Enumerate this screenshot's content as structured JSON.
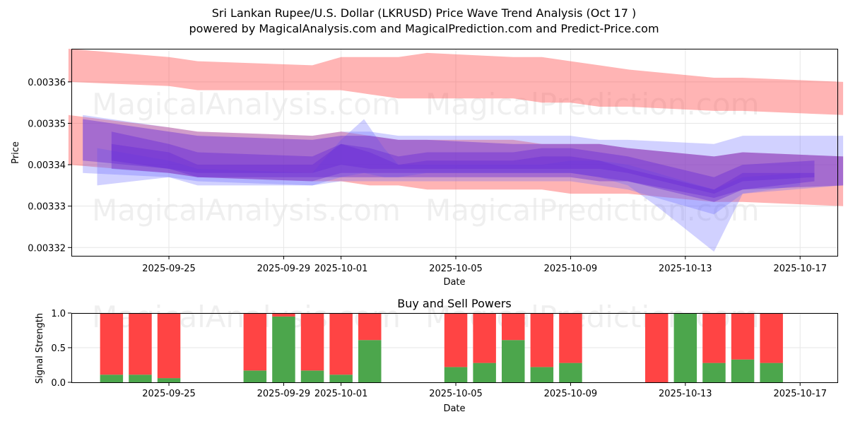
{
  "title": {
    "line1": "Sri Lankan Rupee/U.S. Dollar (LKRUSD) Price Wave Trend Analysis (Oct 17 )",
    "line2": "powered by MagicalAnalysis.com and MagicalPrediction.com and Predict-Price.com"
  },
  "watermarks": [
    "MagicalAnalysis.com",
    "MagicalPrediction.com"
  ],
  "colors": {
    "red_band": "#ff4d4d",
    "blue_band": "#6666ff",
    "purple_band": "#6a2ad6",
    "buy": "#4ca64c",
    "sell": "#ff4444",
    "grid": "#e6e6e6"
  },
  "chart_data": [
    {
      "type": "area",
      "name": "price-wave",
      "xlabel": "Date",
      "ylabel": "Price",
      "ylim": [
        0.003318,
        0.003368
      ],
      "xlim": [
        "2025-09-21.6",
        "2025-10-18.3"
      ],
      "yticks": [
        0.00332,
        0.00333,
        0.00334,
        0.00335,
        0.00336
      ],
      "ytick_labels": [
        "0.00332",
        "0.00333",
        "0.00334",
        "0.00335",
        "0.00336"
      ],
      "xticks": [
        "2025-09-25",
        "2025-09-29",
        "2025-10-01",
        "2025-10-05",
        "2025-10-09",
        "2025-10-13",
        "2025-10-17"
      ],
      "grid": true,
      "dates": [
        "2025-09-22",
        "2025-09-25",
        "2025-09-26",
        "2025-09-29",
        "2025-09-30",
        "2025-10-01",
        "2025-10-02",
        "2025-10-03",
        "2025-10-06",
        "2025-10-07",
        "2025-10-08",
        "2025-10-09",
        "2025-10-10",
        "2025-10-13",
        "2025-10-14",
        "2025-10-17"
      ],
      "bands": [
        {
          "name": "upper-red",
          "color": "red",
          "x": [
            -0.5,
            3,
            4,
            8,
            9,
            10,
            11,
            12,
            15,
            16,
            17,
            18,
            19,
            22,
            23,
            26.5
          ],
          "upper": [
            0.003368,
            0.003366,
            0.003365,
            0.003364,
            0.003366,
            0.003366,
            0.003366,
            0.003367,
            0.003366,
            0.003366,
            0.003365,
            0.003364,
            0.003363,
            0.003361,
            0.003361,
            0.00336
          ],
          "lower": [
            0.00336,
            0.003359,
            0.003358,
            0.003358,
            0.003358,
            0.003357,
            0.003356,
            0.003356,
            0.003356,
            0.003355,
            0.003355,
            0.003354,
            0.003354,
            0.003353,
            0.003353,
            0.003352
          ]
        },
        {
          "name": "lower-red",
          "color": "red",
          "x": [
            -0.5,
            3,
            4,
            8,
            9,
            10,
            11,
            12,
            15,
            16,
            17,
            18,
            19,
            22,
            23,
            26.5
          ],
          "upper": [
            0.003352,
            0.003349,
            0.003348,
            0.003347,
            0.003348,
            0.003347,
            0.003346,
            0.003346,
            0.003346,
            0.003345,
            0.003345,
            0.003345,
            0.003344,
            0.003342,
            0.003343,
            0.003342
          ],
          "lower": [
            0.00334,
            0.003338,
            0.003337,
            0.003336,
            0.003336,
            0.003335,
            0.003335,
            0.003334,
            0.003334,
            0.003334,
            0.003333,
            0.003333,
            0.003333,
            0.003331,
            0.003331,
            0.00333
          ]
        },
        {
          "name": "blue-outer",
          "color": "blue",
          "x": [
            0,
            3,
            4,
            8,
            9,
            10,
            11,
            12,
            15,
            16,
            17,
            18,
            19,
            22,
            23,
            26.5
          ],
          "upper": [
            0.003352,
            0.003349,
            0.003348,
            0.003347,
            0.003348,
            0.003348,
            0.003347,
            0.003347,
            0.003347,
            0.003347,
            0.003347,
            0.003346,
            0.003346,
            0.003345,
            0.003347,
            0.003347
          ],
          "lower": [
            0.003338,
            0.003337,
            0.003335,
            0.003335,
            0.003336,
            0.003336,
            0.003336,
            0.003336,
            0.003336,
            0.003336,
            0.003336,
            0.003335,
            0.003334,
            0.003328,
            0.003333,
            0.003335
          ]
        },
        {
          "name": "blue-spike",
          "color": "blue",
          "x": [
            0.5,
            3,
            4,
            8,
            9,
            9.8,
            10.5,
            11,
            12,
            15,
            16,
            17,
            18,
            19,
            20,
            22,
            23,
            25
          ],
          "upper": [
            0.003344,
            0.003341,
            0.003339,
            0.003338,
            0.003346,
            0.003351,
            0.003344,
            0.00334,
            0.00334,
            0.00334,
            0.00334,
            0.003341,
            0.003341,
            0.00334,
            0.003338,
            0.003334,
            0.003337,
            0.003338
          ],
          "lower": [
            0.003335,
            0.003337,
            0.003336,
            0.003335,
            0.003337,
            0.003338,
            0.003337,
            0.003337,
            0.003338,
            0.003338,
            0.003338,
            0.003338,
            0.003337,
            0.003335,
            0.00333,
            0.003319,
            0.003333,
            0.003335
          ]
        },
        {
          "name": "purple-outer",
          "color": "purple",
          "x": [
            0,
            3,
            4,
            8,
            9,
            10,
            11,
            12,
            15,
            16,
            17,
            18,
            19,
            22,
            23,
            26.5
          ],
          "upper": [
            0.003351,
            0.003348,
            0.003347,
            0.003346,
            0.003347,
            0.003347,
            0.003346,
            0.003346,
            0.003345,
            0.003345,
            0.003345,
            0.003345,
            0.003344,
            0.003342,
            0.003343,
            0.003342
          ],
          "lower": [
            0.003341,
            0.003339,
            0.003337,
            0.003337,
            0.003337,
            0.003337,
            0.003337,
            0.003337,
            0.003337,
            0.003337,
            0.003337,
            0.003336,
            0.003336,
            0.003332,
            0.003334,
            0.003335
          ]
        },
        {
          "name": "purple-mid",
          "color": "purple",
          "x": [
            1,
            3,
            4,
            8,
            9,
            10,
            11,
            12,
            15,
            16,
            17,
            18,
            19,
            22,
            23,
            25.5
          ],
          "upper": [
            0.003348,
            0.003345,
            0.003343,
            0.003342,
            0.003345,
            0.003344,
            0.003342,
            0.003343,
            0.003343,
            0.003344,
            0.003344,
            0.003343,
            0.003342,
            0.003337,
            0.00334,
            0.003341
          ],
          "lower": [
            0.003339,
            0.003338,
            0.003337,
            0.003336,
            0.003338,
            0.003338,
            0.003338,
            0.003338,
            0.003338,
            0.003338,
            0.003338,
            0.003337,
            0.003336,
            0.003331,
            0.003334,
            0.003336
          ]
        },
        {
          "name": "purple-inner",
          "color": "purple",
          "x": [
            1,
            3,
            4,
            8,
            9,
            10,
            11,
            12,
            15,
            16,
            17,
            18,
            19,
            22,
            23,
            25.5
          ],
          "upper": [
            0.003345,
            0.003343,
            0.00334,
            0.00334,
            0.003345,
            0.003343,
            0.00334,
            0.003341,
            0.003341,
            0.003342,
            0.003342,
            0.003341,
            0.003339,
            0.003334,
            0.003338,
            0.003338
          ],
          "lower": [
            0.003341,
            0.003339,
            0.003338,
            0.003338,
            0.00334,
            0.003339,
            0.003339,
            0.003339,
            0.003339,
            0.003339,
            0.003339,
            0.003339,
            0.003338,
            0.003333,
            0.003336,
            0.003337
          ]
        }
      ]
    },
    {
      "type": "bar",
      "name": "signal-strength",
      "title": "Buy and Sell Powers",
      "xlabel": "Date",
      "ylabel": "Signal Strength",
      "ylim": [
        0,
        1.0
      ],
      "yticks": [
        0.0,
        0.5,
        1.0
      ],
      "ytick_labels": [
        "0.0",
        "0.5",
        "1.0"
      ],
      "xticks": [
        "2025-09-25",
        "2025-09-29",
        "2025-10-01",
        "2025-10-05",
        "2025-10-09",
        "2025-10-13",
        "2025-10-17"
      ],
      "categories": [
        "2025-09-23",
        "2025-09-24",
        "2025-09-25",
        "2025-09-28",
        "2025-09-29",
        "2025-09-30",
        "2025-10-01",
        "2025-10-02",
        "2025-10-05",
        "2025-10-06",
        "2025-10-07",
        "2025-10-08",
        "2025-10-09",
        "2025-10-12",
        "2025-10-13",
        "2025-10-14",
        "2025-10-15",
        "2025-10-16"
      ],
      "series": [
        {
          "name": "Buy",
          "values": [
            0.11,
            0.11,
            0.06,
            0.17,
            0.95,
            0.17,
            0.11,
            0.61,
            0.22,
            0.28,
            0.61,
            0.22,
            0.28,
            0.0,
            1.0,
            0.28,
            0.33,
            0.28
          ]
        },
        {
          "name": "Sell",
          "values": [
            0.89,
            0.89,
            0.94,
            0.83,
            0.05,
            0.83,
            0.89,
            0.39,
            0.78,
            0.72,
            0.39,
            0.78,
            0.72,
            1.0,
            0.0,
            0.72,
            0.67,
            0.72
          ]
        }
      ]
    }
  ]
}
